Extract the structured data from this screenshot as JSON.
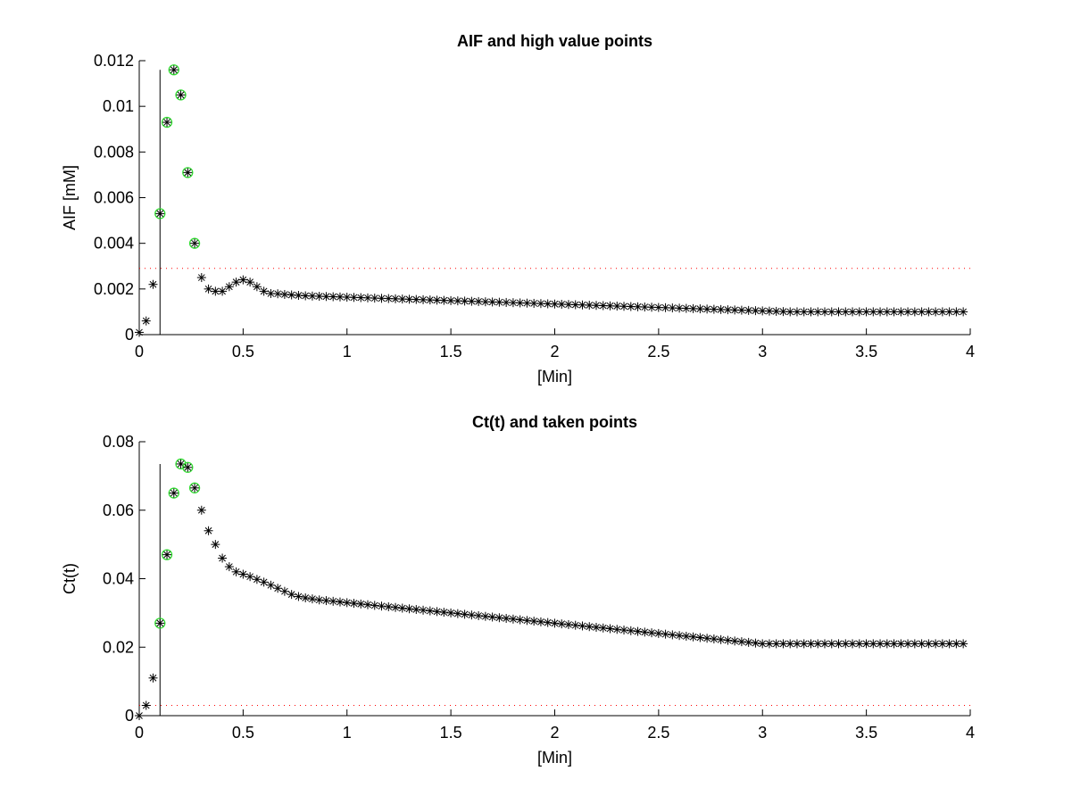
{
  "chart_data": [
    {
      "type": "scatter",
      "title": "AIF and high value points",
      "xlabel": "[Min]",
      "ylabel": "AIF [mM]",
      "xlim": [
        0,
        4
      ],
      "ylim": [
        0,
        0.012
      ],
      "xticks": [
        0,
        0.5,
        1,
        1.5,
        2,
        2.5,
        3,
        3.5,
        4
      ],
      "xtick_labels": [
        "0",
        "0.5",
        "1",
        "1.5",
        "2",
        "2.5",
        "3",
        "3.5",
        "4"
      ],
      "yticks": [
        0,
        0.002,
        0.004,
        0.006,
        0.008,
        0.01,
        0.012
      ],
      "ytick_labels": [
        "0",
        "0.002",
        "0.004",
        "0.006",
        "0.008",
        "0.01",
        "0.012"
      ],
      "grid": false,
      "marker": "asterisk",
      "marker_color": "#000000",
      "highlight_color": "#33dd33",
      "sample_interval_min": 0.03333,
      "y": [
        0.0001,
        0.0006,
        0.0022,
        0.0053,
        0.0093,
        0.0116,
        0.0105,
        0.0071,
        0.004,
        0.0025,
        0.002,
        0.0019,
        0.0019,
        0.0021,
        0.0023,
        0.0024,
        0.0023,
        0.0021,
        0.0019,
        0.0018,
        0.00179,
        0.00176,
        0.00174,
        0.00172,
        0.0017,
        0.00169,
        0.00168,
        0.00167,
        0.00166,
        0.00165,
        0.00164,
        0.00163,
        0.00162,
        0.00161,
        0.0016,
        0.00159,
        0.00158,
        0.00157,
        0.00156,
        0.00155,
        0.00154,
        0.00153,
        0.00152,
        0.00151,
        0.0015,
        0.00149,
        0.00148,
        0.00147,
        0.00146,
        0.00145,
        0.00144,
        0.00143,
        0.00142,
        0.00141,
        0.0014,
        0.00139,
        0.00138,
        0.00137,
        0.00136,
        0.00135,
        0.00134,
        0.00133,
        0.00132,
        0.00131,
        0.0013,
        0.00129,
        0.00128,
        0.00127,
        0.00126,
        0.00125,
        0.00124,
        0.00123,
        0.00122,
        0.00121,
        0.0012,
        0.00119,
        0.00118,
        0.00117,
        0.00116,
        0.00115,
        0.00114,
        0.00113,
        0.00112,
        0.00111,
        0.0011,
        0.00109,
        0.00108,
        0.00107,
        0.00106,
        0.00105,
        0.00104,
        0.00103,
        0.00102,
        0.00101,
        0.001,
        0.001,
        0.001,
        0.001,
        0.001,
        0.001,
        0.001,
        0.001,
        0.001,
        0.001,
        0.001,
        0.001,
        0.001,
        0.001,
        0.001,
        0.001,
        0.001,
        0.001,
        0.001,
        0.001,
        0.001,
        0.001,
        0.001,
        0.001,
        0.001,
        0.001
      ],
      "highlighted_indices": [
        3,
        4,
        5,
        6,
        7,
        8
      ],
      "vline_x": 0.1,
      "vline_ymax": 0.0116,
      "threshold_y": 0.0029,
      "threshold_color": "#ff0000"
    },
    {
      "type": "scatter",
      "title": "Ct(t) and taken points",
      "xlabel": "[Min]",
      "ylabel": "Ct(t)",
      "xlim": [
        0,
        4
      ],
      "ylim": [
        0,
        0.08
      ],
      "xticks": [
        0,
        0.5,
        1,
        1.5,
        2,
        2.5,
        3,
        3.5,
        4
      ],
      "xtick_labels": [
        "0",
        "0.5",
        "1",
        "1.5",
        "2",
        "2.5",
        "3",
        "3.5",
        "4"
      ],
      "yticks": [
        0,
        0.02,
        0.04,
        0.06,
        0.08
      ],
      "ytick_labels": [
        "0",
        "0.02",
        "0.04",
        "0.06",
        "0.08"
      ],
      "grid": false,
      "marker": "asterisk",
      "marker_color": "#000000",
      "highlight_color": "#33dd33",
      "sample_interval_min": 0.03333,
      "y": [
        0.0,
        0.003,
        0.011,
        0.027,
        0.047,
        0.065,
        0.0735,
        0.0725,
        0.0665,
        0.06,
        0.054,
        0.05,
        0.046,
        0.0435,
        0.042,
        0.0413,
        0.0406,
        0.0398,
        0.039,
        0.0381,
        0.0372,
        0.0363,
        0.0354,
        0.0348,
        0.0344,
        0.0341,
        0.0338,
        0.0336,
        0.0334,
        0.0332,
        0.033,
        0.0328,
        0.0326,
        0.0324,
        0.0322,
        0.032,
        0.0318,
        0.0316,
        0.0314,
        0.0312,
        0.031,
        0.0308,
        0.0306,
        0.0304,
        0.0302,
        0.03,
        0.0298,
        0.0296,
        0.0294,
        0.0292,
        0.029,
        0.0288,
        0.0286,
        0.0284,
        0.0282,
        0.028,
        0.0278,
        0.0276,
        0.0274,
        0.0272,
        0.027,
        0.0268,
        0.0266,
        0.0264,
        0.0262,
        0.026,
        0.0258,
        0.0256,
        0.0254,
        0.0252,
        0.025,
        0.0248,
        0.0246,
        0.0244,
        0.0242,
        0.024,
        0.0238,
        0.0236,
        0.0234,
        0.0232,
        0.023,
        0.0228,
        0.0226,
        0.0224,
        0.0222,
        0.022,
        0.0218,
        0.0216,
        0.0214,
        0.0212,
        0.021,
        0.021,
        0.021,
        0.021,
        0.021,
        0.021,
        0.021,
        0.021,
        0.021,
        0.021,
        0.021,
        0.021,
        0.021,
        0.021,
        0.021,
        0.021,
        0.021,
        0.021,
        0.021,
        0.021,
        0.021,
        0.021,
        0.021,
        0.021,
        0.021,
        0.021,
        0.021,
        0.021,
        0.021,
        0.021
      ],
      "highlighted_indices": [
        3,
        4,
        5,
        6,
        7,
        8
      ],
      "vline_x": 0.1,
      "vline_ymax": 0.0735,
      "threshold_y": 0.003,
      "threshold_color": "#ff0000"
    }
  ]
}
